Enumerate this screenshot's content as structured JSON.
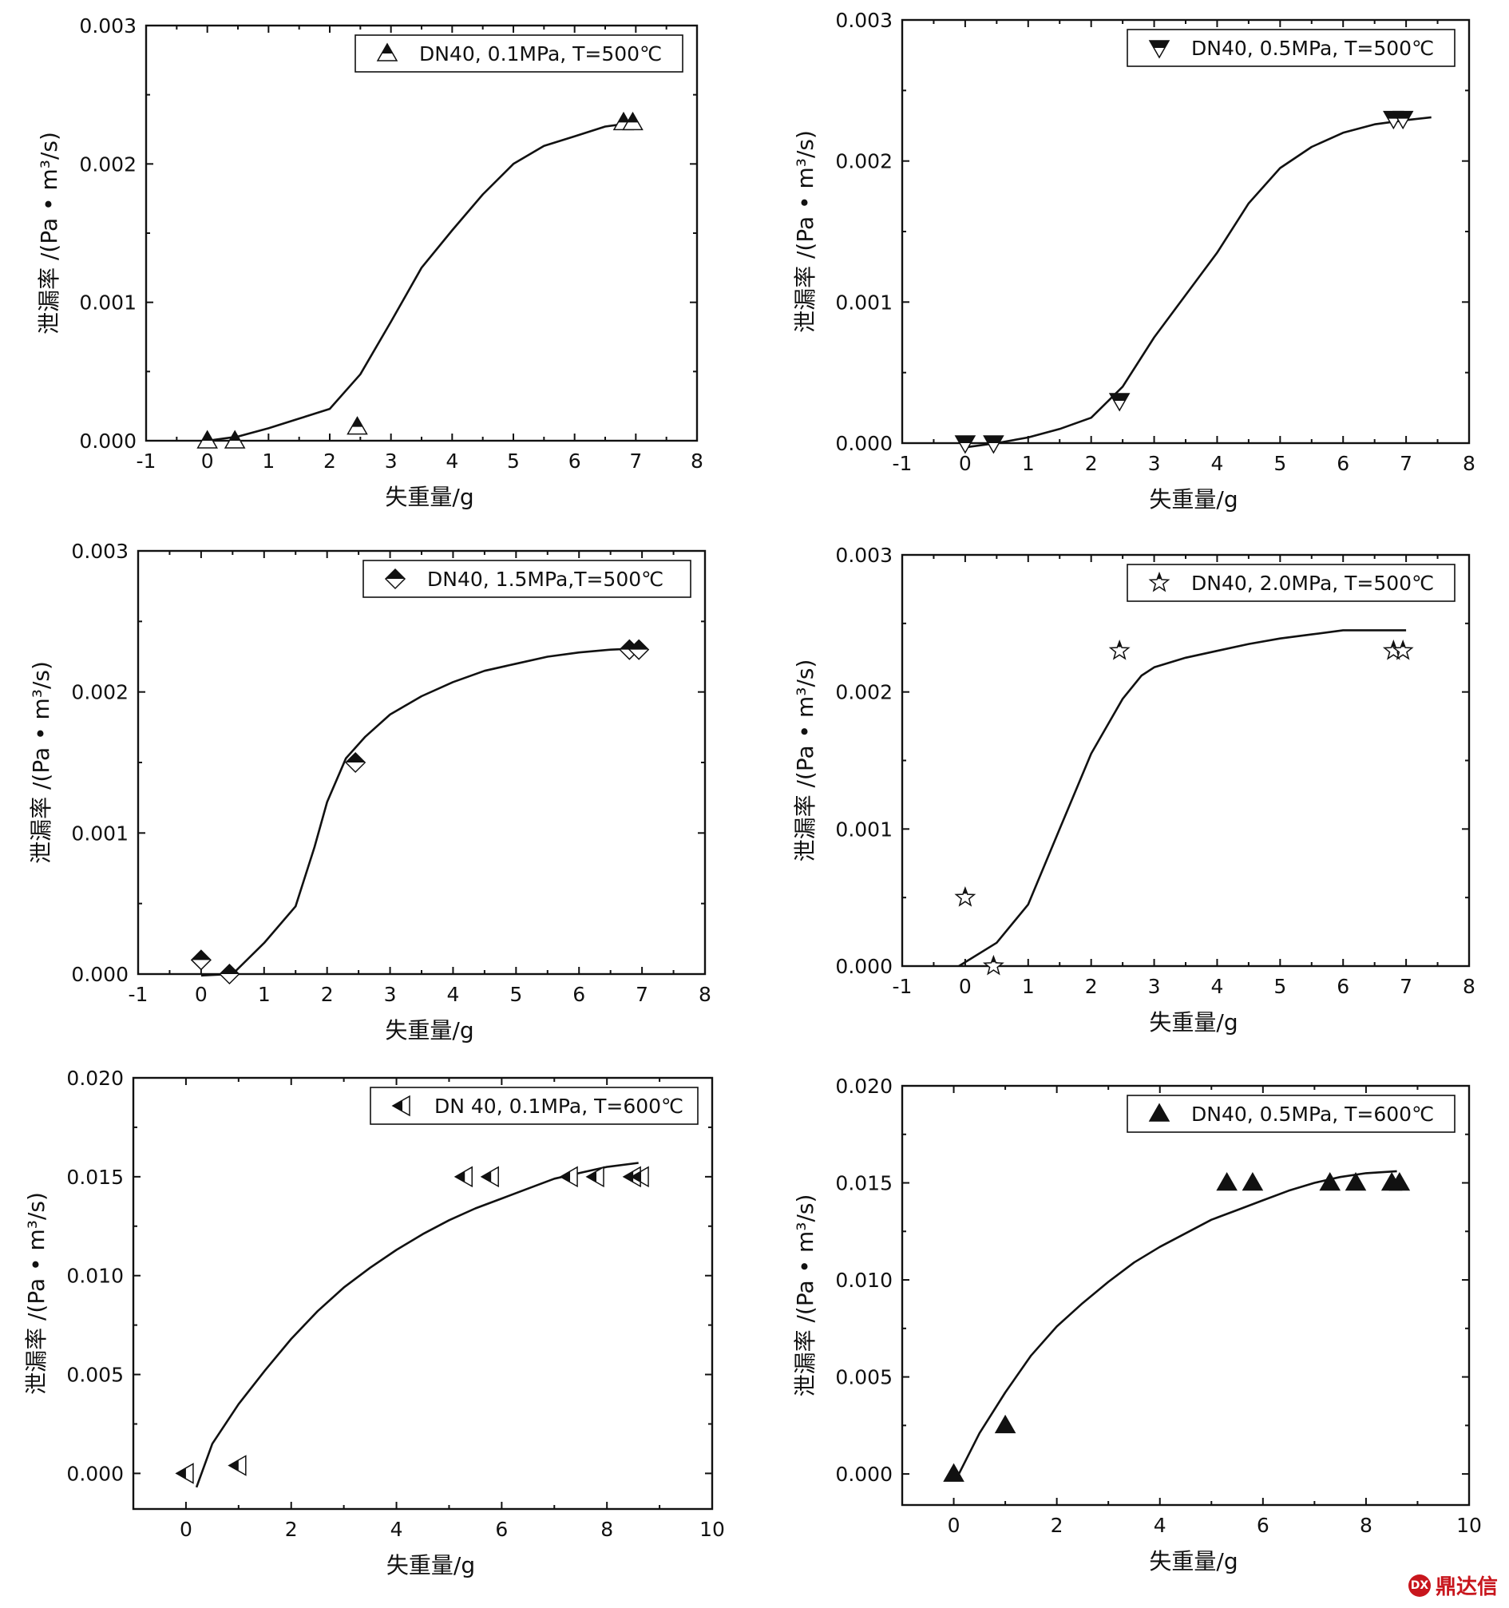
{
  "chart_data": [
    {
      "type": "scatter",
      "title": "",
      "xlabel": "失重量/g",
      "ylabel": "泄漏率 /(Pa • m³/s)",
      "xlim": [
        -1,
        8
      ],
      "ylim": [
        0,
        0.003
      ],
      "xticks": [
        -1,
        0,
        1,
        2,
        3,
        4,
        5,
        6,
        7,
        8
      ],
      "yticks": [
        0,
        0.001,
        0.002,
        0.003
      ],
      "ytick_labels": [
        "0.000",
        "0.001",
        "0.002",
        "0.003"
      ],
      "legend": "top-right",
      "grid": false,
      "series": [
        {
          "name": "DN40, 0.1MPa, T=500℃",
          "marker": "triangle-up-half",
          "x": [
            0.0,
            0.45,
            2.45,
            6.8,
            6.95
          ],
          "y": [
            0.0,
            0.0,
            0.0001,
            0.0023,
            0.0023
          ]
        }
      ],
      "fit_line": {
        "x": [
          0,
          0.5,
          1.0,
          1.5,
          2.0,
          2.5,
          3.0,
          3.5,
          4.0,
          4.5,
          5.0,
          5.5,
          6.0,
          6.5,
          7.0
        ],
        "y": [
          0.0,
          3e-05,
          9e-05,
          0.00016,
          0.00023,
          0.00048,
          0.00086,
          0.00125,
          0.00152,
          0.00178,
          0.002,
          0.00213,
          0.0022,
          0.00227,
          0.0023
        ]
      }
    },
    {
      "type": "scatter",
      "title": "",
      "xlabel": "失重量/g",
      "ylabel": "泄漏率 /(Pa • m³/s)",
      "xlim": [
        -1,
        8
      ],
      "ylim": [
        0,
        0.003
      ],
      "xticks": [
        -1,
        0,
        1,
        2,
        3,
        4,
        5,
        6,
        7,
        8
      ],
      "yticks": [
        0,
        0.001,
        0.002,
        0.003
      ],
      "ytick_labels": [
        "0.000",
        "0.001",
        "0.002",
        "0.003"
      ],
      "legend": "top-right",
      "grid": false,
      "series": [
        {
          "name": "DN40, 0.5MPa, T=500℃",
          "marker": "triangle-down-half",
          "x": [
            0.0,
            0.45,
            2.45,
            6.8,
            6.95
          ],
          "y": [
            0.0,
            0.0,
            0.0003,
            0.0023,
            0.0023
          ]
        }
      ],
      "fit_line": {
        "x": [
          0.0,
          0.5,
          1.0,
          1.5,
          2.0,
          2.5,
          3.0,
          3.5,
          4.0,
          4.5,
          5.0,
          5.5,
          6.0,
          6.5,
          7.0,
          7.4
        ],
        "y": [
          -3e-05,
          0.0,
          4e-05,
          0.0001,
          0.00018,
          0.0004,
          0.00075,
          0.00105,
          0.00135,
          0.0017,
          0.00195,
          0.0021,
          0.0022,
          0.00226,
          0.00229,
          0.00231
        ]
      }
    },
    {
      "type": "scatter",
      "title": "",
      "xlabel": "失重量/g",
      "ylabel": "泄漏率 /(Pa • m³/s)",
      "xlim": [
        -1,
        8
      ],
      "ylim": [
        0,
        0.003
      ],
      "xticks": [
        -1,
        0,
        1,
        2,
        3,
        4,
        5,
        6,
        7,
        8
      ],
      "yticks": [
        0,
        0.001,
        0.002,
        0.003
      ],
      "ytick_labels": [
        "0.000",
        "0.001",
        "0.002",
        "0.003"
      ],
      "legend": "top-right",
      "grid": false,
      "series": [
        {
          "name": "DN40, 1.5MPa,T=500℃",
          "marker": "diamond-half",
          "x": [
            0.0,
            0.45,
            2.45,
            6.8,
            6.95
          ],
          "y": [
            0.0001,
            0.0,
            0.0015,
            0.0023,
            0.0023
          ]
        }
      ],
      "fit_line": {
        "x": [
          0.0,
          0.5,
          1.0,
          1.5,
          1.8,
          2.0,
          2.3,
          2.6,
          3.0,
          3.5,
          4.0,
          4.5,
          5.0,
          5.5,
          6.0,
          6.5,
          7.0
        ],
        "y": [
          -1e-05,
          0.0,
          0.00022,
          0.00048,
          0.0009,
          0.00122,
          0.00153,
          0.00168,
          0.00184,
          0.00197,
          0.00207,
          0.00215,
          0.0022,
          0.00225,
          0.00228,
          0.0023,
          0.00231
        ]
      }
    },
    {
      "type": "scatter",
      "title": "",
      "xlabel": "失重量/g",
      "ylabel": "泄漏率 /(Pa • m³/s)",
      "xlim": [
        -1,
        8
      ],
      "ylim": [
        0,
        0.003
      ],
      "xticks": [
        -1,
        0,
        1,
        2,
        3,
        4,
        5,
        6,
        7,
        8
      ],
      "yticks": [
        0,
        0.001,
        0.002,
        0.003
      ],
      "ytick_labels": [
        "0.000",
        "0.001",
        "0.002",
        "0.003"
      ],
      "legend": "top-right",
      "grid": false,
      "series": [
        {
          "name": "DN40, 2.0MPa, T=500℃",
          "marker": "star",
          "x": [
            0.0,
            0.45,
            2.45,
            6.8,
            6.95
          ],
          "y": [
            0.0005,
            0.0,
            0.0023,
            0.0023,
            0.0023
          ]
        }
      ],
      "fit_line": {
        "x": [
          -0.1,
          0.5,
          1.0,
          1.5,
          2.0,
          2.5,
          2.8,
          3.0,
          3.5,
          4.0,
          4.5,
          5.0,
          5.5,
          6.0,
          6.5,
          7.0
        ],
        "y": [
          0.0,
          0.00017,
          0.00045,
          0.001,
          0.00155,
          0.00195,
          0.00212,
          0.00218,
          0.00225,
          0.0023,
          0.00235,
          0.00239,
          0.00242,
          0.00245,
          0.00245,
          0.00245
        ]
      }
    },
    {
      "type": "scatter",
      "title": "",
      "xlabel": "失重量/g",
      "ylabel": "泄漏率 /(Pa • m³/s)",
      "xlim": [
        -1,
        10
      ],
      "ylim": [
        -0.0018,
        0.02
      ],
      "xticks": [
        0,
        2,
        4,
        6,
        8,
        10
      ],
      "yticks": [
        0,
        0.005,
        0.01,
        0.015,
        0.02
      ],
      "ytick_labels": [
        "0.000",
        "0.005",
        "0.010",
        "0.015",
        "0.020"
      ],
      "legend": "top-right",
      "grid": false,
      "series": [
        {
          "name": "DN 40, 0.1MPa, T=600℃",
          "marker": "triangle-left-half",
          "x": [
            0.0,
            1.0,
            5.3,
            5.8,
            7.3,
            7.8,
            8.5,
            8.65
          ],
          "y": [
            0.0,
            0.0004,
            0.015,
            0.015,
            0.015,
            0.015,
            0.015,
            0.015
          ]
        }
      ],
      "fit_line": {
        "x": [
          0.2,
          0.5,
          1.0,
          1.5,
          2.0,
          2.5,
          3.0,
          3.5,
          4.0,
          4.5,
          5.0,
          5.5,
          6.0,
          6.5,
          7.0,
          7.5,
          8.0,
          8.6
        ],
        "y": [
          -0.0007,
          0.0015,
          0.0035,
          0.0052,
          0.0068,
          0.0082,
          0.0094,
          0.0104,
          0.0113,
          0.0121,
          0.0128,
          0.0134,
          0.0139,
          0.0144,
          0.0149,
          0.0152,
          0.0155,
          0.0157
        ]
      }
    },
    {
      "type": "scatter",
      "title": "",
      "xlabel": "失重量/g",
      "ylabel": "泄漏率 /(Pa • m³/s)",
      "xlim": [
        -1,
        10
      ],
      "ylim": [
        -0.0016,
        0.02
      ],
      "xticks": [
        0,
        2,
        4,
        6,
        8,
        10
      ],
      "yticks": [
        0,
        0.005,
        0.01,
        0.015,
        0.02
      ],
      "ytick_labels": [
        "0.000",
        "0.005",
        "0.010",
        "0.015",
        "0.020"
      ],
      "legend": "top-right",
      "grid": false,
      "series": [
        {
          "name": "DN40, 0.5MPa, T=600℃",
          "marker": "triangle-up-filled",
          "x": [
            0.0,
            1.0,
            5.3,
            5.8,
            7.3,
            7.8,
            8.5,
            8.65
          ],
          "y": [
            0.0,
            0.0025,
            0.015,
            0.015,
            0.015,
            0.015,
            0.015,
            0.015
          ]
        }
      ],
      "fit_line": {
        "x": [
          0.1,
          0.5,
          1.0,
          1.5,
          2.0,
          2.5,
          3.0,
          3.5,
          4.0,
          4.5,
          5.0,
          5.5,
          6.0,
          6.5,
          7.0,
          7.5,
          8.0,
          8.6
        ],
        "y": [
          0.0,
          0.0021,
          0.0042,
          0.0061,
          0.0076,
          0.0088,
          0.0099,
          0.0109,
          0.0117,
          0.0124,
          0.0131,
          0.0136,
          0.0141,
          0.0146,
          0.015,
          0.0153,
          0.0155,
          0.0156
        ]
      }
    }
  ],
  "watermark": {
    "seal_text": "DX",
    "brand_text": "鼎达信"
  }
}
